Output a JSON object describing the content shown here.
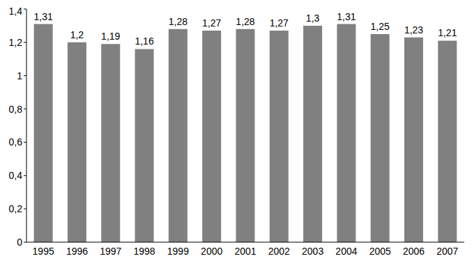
{
  "chart_data": {
    "type": "bar",
    "categories": [
      "1995",
      "1996",
      "1997",
      "1998",
      "1999",
      "2000",
      "2001",
      "2002",
      "2003",
      "2004",
      "2005",
      "2006",
      "2007"
    ],
    "values": [
      1.31,
      1.2,
      1.19,
      1.16,
      1.28,
      1.27,
      1.28,
      1.27,
      1.3,
      1.31,
      1.25,
      1.23,
      1.21
    ],
    "value_labels": [
      "1,31",
      "1,2",
      "1,19",
      "1,16",
      "1,28",
      "1,27",
      "1,28",
      "1,27",
      "1,3",
      "1,31",
      "1,25",
      "1,23",
      "1,21"
    ],
    "color": "#808080",
    "ylim": [
      0,
      1.4
    ],
    "yticks": [
      0,
      {
        "value": 0.2,
        "label": "0,2"
      },
      {
        "value": 0.4,
        "label": "0,4"
      },
      {
        "value": 0.6,
        "label": "0,6"
      },
      {
        "value": 0.8,
        "label": "0,8"
      },
      1,
      {
        "value": 1.2,
        "label": "1,2"
      },
      {
        "value": 1.4,
        "label": "1,4"
      }
    ],
    "grid": false,
    "data_labels": true
  }
}
